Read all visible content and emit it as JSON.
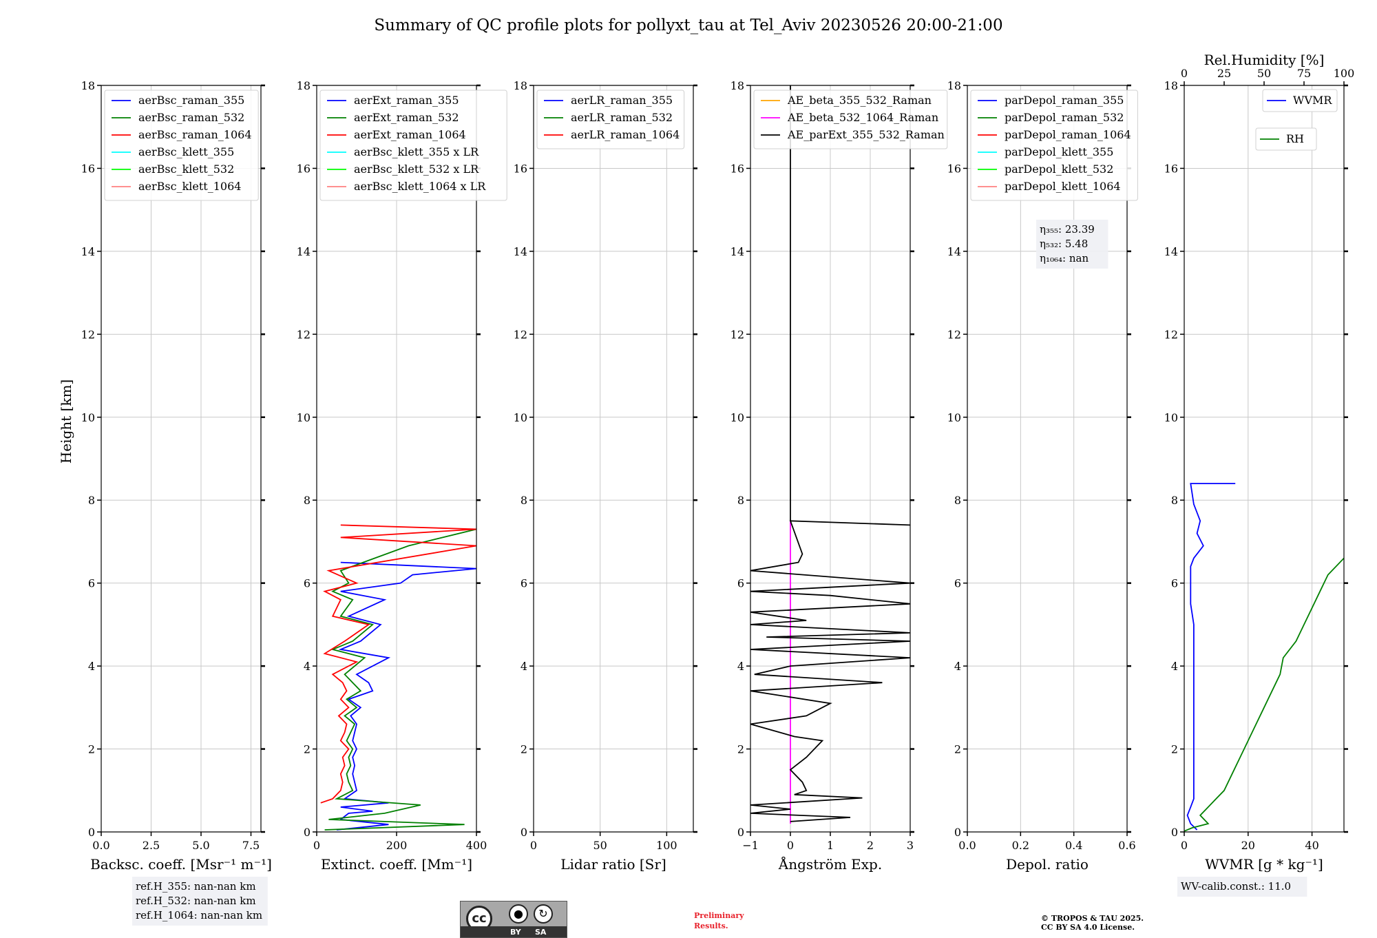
{
  "figure_title": "Summary of QC profile plots for pollyxt_tau at Tel_Aviv 20230526 20:00-21:00",
  "ylabel": "Height [km]",
  "chart_data": [
    {
      "type": "line",
      "xlabel": "Backsc. coeff. [Msr⁻¹ m⁻¹]",
      "xlim": [
        0,
        8
      ],
      "xticks": [
        "0.0",
        "2.5",
        "5.0",
        "7.5"
      ],
      "ylim": [
        0,
        18
      ],
      "grid": true,
      "legend": {
        "placement": "top-left",
        "entries": [
          {
            "name": "aerBsc_raman_355",
            "color": "#0000ff"
          },
          {
            "name": "aerBsc_raman_532",
            "color": "#008000"
          },
          {
            "name": "aerBsc_raman_1064",
            "color": "#ff0000"
          },
          {
            "name": "aerBsc_klett_355",
            "color": "#00ffff"
          },
          {
            "name": "aerBsc_klett_532",
            "color": "#00ff00"
          },
          {
            "name": "aerBsc_klett_1064",
            "color": "#ff8080"
          }
        ]
      },
      "series": [],
      "annotation": [
        "ref.H_355: nan-nan km",
        "ref.H_532: nan-nan km",
        "ref.H_1064: nan-nan km"
      ]
    },
    {
      "type": "line",
      "xlabel": "Extinct. coeff. [Mm⁻¹]",
      "xlim": [
        0,
        400
      ],
      "xticks": [
        "0",
        "200",
        "400"
      ],
      "ylim": [
        0,
        18
      ],
      "grid": true,
      "legend": {
        "placement": "top-left",
        "entries": [
          {
            "name": "aerExt_raman_355",
            "color": "#0000ff"
          },
          {
            "name": "aerExt_raman_532",
            "color": "#008000"
          },
          {
            "name": "aerExt_raman_1064",
            "color": "#ff0000"
          },
          {
            "name": "aerBsc_klett_355 x LR",
            "color": "#00ffff"
          },
          {
            "name": "aerBsc_klett_532 x LR",
            "color": "#00ff00"
          },
          {
            "name": "aerBsc_klett_1064 x LR",
            "color": "#ff8080"
          }
        ]
      },
      "series": [
        {
          "name": "aerExt_raman_355",
          "color": "#0000ff",
          "points": [
            [
              50,
              0.05
            ],
            [
              180,
              0.18
            ],
            [
              60,
              0.3
            ],
            [
              80,
              0.45
            ],
            [
              140,
              0.5
            ],
            [
              60,
              0.6
            ],
            [
              180,
              0.7
            ],
            [
              70,
              0.8
            ],
            [
              100,
              1.0
            ],
            [
              95,
              1.2
            ],
            [
              90,
              1.4
            ],
            [
              95,
              1.6
            ],
            [
              90,
              1.8
            ],
            [
              100,
              2.0
            ],
            [
              90,
              2.2
            ],
            [
              95,
              2.4
            ],
            [
              100,
              2.6
            ],
            [
              85,
              2.8
            ],
            [
              110,
              3.0
            ],
            [
              80,
              3.2
            ],
            [
              140,
              3.4
            ],
            [
              130,
              3.6
            ],
            [
              100,
              3.8
            ],
            [
              180,
              4.2
            ],
            [
              60,
              4.4
            ],
            [
              110,
              4.6
            ],
            [
              160,
              5.0
            ],
            [
              80,
              5.2
            ],
            [
              170,
              5.6
            ],
            [
              60,
              5.8
            ],
            [
              210,
              6.0
            ],
            [
              240,
              6.2
            ],
            [
              400,
              6.35
            ],
            [
              60,
              6.5
            ]
          ]
        },
        {
          "name": "aerExt_raman_532",
          "color": "#008000",
          "points": [
            [
              20,
              0.05
            ],
            [
              370,
              0.18
            ],
            [
              30,
              0.3
            ],
            [
              170,
              0.45
            ],
            [
              260,
              0.65
            ],
            [
              50,
              0.8
            ],
            [
              90,
              1.0
            ],
            [
              80,
              1.2
            ],
            [
              75,
              1.4
            ],
            [
              85,
              1.6
            ],
            [
              80,
              1.8
            ],
            [
              90,
              2.0
            ],
            [
              75,
              2.2
            ],
            [
              85,
              2.4
            ],
            [
              95,
              2.6
            ],
            [
              70,
              2.8
            ],
            [
              100,
              3.0
            ],
            [
              75,
              3.2
            ],
            [
              110,
              3.4
            ],
            [
              90,
              3.6
            ],
            [
              70,
              3.8
            ],
            [
              120,
              4.2
            ],
            [
              40,
              4.4
            ],
            [
              90,
              4.6
            ],
            [
              140,
              5.0
            ],
            [
              60,
              5.2
            ],
            [
              90,
              5.6
            ],
            [
              40,
              5.8
            ],
            [
              80,
              6.0
            ],
            [
              60,
              6.3
            ],
            [
              230,
              6.9
            ],
            [
              400,
              7.3
            ]
          ]
        },
        {
          "name": "aerExt_raman_1064",
          "color": "#ff0000",
          "points": [
            [
              10,
              0.7
            ],
            [
              40,
              0.8
            ],
            [
              60,
              1.0
            ],
            [
              65,
              1.2
            ],
            [
              60,
              1.4
            ],
            [
              70,
              1.6
            ],
            [
              65,
              1.8
            ],
            [
              80,
              2.0
            ],
            [
              60,
              2.2
            ],
            [
              70,
              2.4
            ],
            [
              75,
              2.6
            ],
            [
              55,
              2.8
            ],
            [
              80,
              3.0
            ],
            [
              60,
              3.2
            ],
            [
              75,
              3.4
            ],
            [
              65,
              3.6
            ],
            [
              40,
              3.8
            ],
            [
              100,
              4.1
            ],
            [
              20,
              4.3
            ],
            [
              70,
              4.6
            ],
            [
              130,
              5.0
            ],
            [
              40,
              5.2
            ],
            [
              60,
              5.6
            ],
            [
              20,
              5.8
            ],
            [
              100,
              6.0
            ],
            [
              30,
              6.3
            ],
            [
              400,
              6.9
            ],
            [
              60,
              7.1
            ],
            [
              400,
              7.3
            ],
            [
              60,
              7.4
            ]
          ]
        }
      ]
    },
    {
      "type": "line",
      "xlabel": "Lidar ratio [Sr]",
      "xlim": [
        0,
        120
      ],
      "xticks": [
        "0",
        "50",
        "100"
      ],
      "ylim": [
        0,
        18
      ],
      "grid": true,
      "legend": {
        "placement": "top-left",
        "entries": [
          {
            "name": "aerLR_raman_355",
            "color": "#0000ff"
          },
          {
            "name": "aerLR_raman_532",
            "color": "#008000"
          },
          {
            "name": "aerLR_raman_1064",
            "color": "#ff0000"
          }
        ]
      },
      "series": []
    },
    {
      "type": "line",
      "xlabel": "Ångström Exp.",
      "xlim": [
        -1,
        3
      ],
      "xticks": [
        "−1",
        "0",
        "1",
        "2",
        "3"
      ],
      "ylim": [
        0,
        18
      ],
      "grid": true,
      "legend": {
        "placement": "top-left",
        "entries": [
          {
            "name": "AE_beta_355_532_Raman",
            "color": "#ffa500"
          },
          {
            "name": "AE_beta_532_1064_Raman",
            "color": "#ff00ff"
          },
          {
            "name": "AE_parExt_355_532_Raman",
            "color": "#000000"
          }
        ]
      },
      "series": [
        {
          "name": "AE_beta_532_1064_Raman",
          "color": "#ff00ff",
          "points": [
            [
              0,
              0.2
            ],
            [
              0,
              7.5
            ]
          ]
        },
        {
          "name": "AE_parExt_355_532_Raman",
          "color": "#000000",
          "points": [
            [
              0,
              0.25
            ],
            [
              1.5,
              0.35
            ],
            [
              -1,
              0.45
            ],
            [
              0,
              0.55
            ],
            [
              -1,
              0.65
            ],
            [
              1.8,
              0.82
            ],
            [
              0.1,
              0.9
            ],
            [
              0.4,
              1.0
            ],
            [
              0.3,
              1.2
            ],
            [
              0,
              1.5
            ],
            [
              0.4,
              1.8
            ],
            [
              0.8,
              2.2
            ],
            [
              0.1,
              2.3
            ],
            [
              -1,
              2.6
            ],
            [
              0.4,
              2.8
            ],
            [
              1.0,
              3.1
            ],
            [
              -1,
              3.4
            ],
            [
              2.3,
              3.6
            ],
            [
              -0.9,
              3.8
            ],
            [
              0,
              4.0
            ],
            [
              3,
              4.2
            ],
            [
              -1,
              4.4
            ],
            [
              3,
              4.6
            ],
            [
              -0.6,
              4.7
            ],
            [
              3,
              4.8
            ],
            [
              -1,
              5.0
            ],
            [
              0.4,
              5.1
            ],
            [
              -1,
              5.3
            ],
            [
              3,
              5.5
            ],
            [
              1,
              5.7
            ],
            [
              -1,
              5.8
            ],
            [
              3,
              6.0
            ],
            [
              -1,
              6.3
            ],
            [
              0.2,
              6.5
            ],
            [
              0.3,
              6.7
            ],
            [
              0,
              7.5
            ],
            [
              3,
              7.4
            ]
          ]
        },
        {
          "name": "AE_parExt_355_532_Raman (upper)",
          "color": "#000000",
          "points": [
            [
              0,
              7.5
            ],
            [
              0,
              18
            ]
          ]
        }
      ]
    },
    {
      "type": "line",
      "xlabel": "Depol. ratio",
      "xlim": [
        0,
        0.6
      ],
      "xticks": [
        "0.0",
        "0.2",
        "0.4",
        "0.6"
      ],
      "ylim": [
        0,
        18
      ],
      "grid": true,
      "legend": {
        "placement": "top-left",
        "entries": [
          {
            "name": "parDepol_raman_355",
            "color": "#0000ff"
          },
          {
            "name": "parDepol_raman_532",
            "color": "#008000"
          },
          {
            "name": "parDepol_raman_1064",
            "color": "#ff0000"
          },
          {
            "name": "parDepol_klett_355",
            "color": "#00ffff"
          },
          {
            "name": "parDepol_klett_532",
            "color": "#00ff00"
          },
          {
            "name": "parDepol_klett_1064",
            "color": "#ff8080"
          }
        ]
      },
      "series": [],
      "annotation": [
        "η₃₅₅: 23.39",
        "η₅₃₂: 5.48",
        "η₁₀₆₄: nan"
      ]
    },
    {
      "type": "line",
      "xlabel": "WVMR [g * kg⁻¹]",
      "xlim": [
        0,
        50
      ],
      "xticks": [
        "0",
        "20",
        "40"
      ],
      "x2label": "Rel.Humidity [%]",
      "x2lim": [
        0,
        100
      ],
      "x2ticks": [
        "0",
        "25",
        "50",
        "75",
        "100"
      ],
      "ylim": [
        0,
        18
      ],
      "grid": true,
      "legend": {
        "placement": "top-right",
        "entries": [
          {
            "name": "WVMR",
            "color": "#0000ff"
          },
          {
            "name": "RH",
            "color": "#008000"
          }
        ]
      },
      "series": [
        {
          "name": "WVMR",
          "color": "#0000ff",
          "axis": "bottom",
          "points": [
            [
              4,
              0.05
            ],
            [
              2,
              0.2
            ],
            [
              1,
              0.4
            ],
            [
              2,
              0.6
            ],
            [
              3,
              0.8
            ],
            [
              3,
              1.0
            ],
            [
              3,
              1.5
            ],
            [
              3,
              2.0
            ],
            [
              3,
              2.5
            ],
            [
              3,
              3.0
            ],
            [
              3,
              3.5
            ],
            [
              3,
              4.0
            ],
            [
              3,
              4.5
            ],
            [
              3,
              5.0
            ],
            [
              2,
              5.5
            ],
            [
              2,
              6.0
            ],
            [
              2,
              6.4
            ],
            [
              3,
              6.6
            ],
            [
              6,
              6.9
            ],
            [
              4,
              7.2
            ],
            [
              5,
              7.5
            ],
            [
              3,
              7.9
            ],
            [
              2,
              8.4
            ],
            [
              16,
              8.4
            ]
          ]
        },
        {
          "name": "RH",
          "color": "#008000",
          "axis": "top",
          "points": [
            [
              0,
              0.02
            ],
            [
              5,
              0.1
            ],
            [
              15,
              0.2
            ],
            [
              10,
              0.4
            ],
            [
              15,
              0.6
            ],
            [
              20,
              0.8
            ],
            [
              25,
              1.0
            ],
            [
              30,
              1.4
            ],
            [
              35,
              1.8
            ],
            [
              40,
              2.2
            ],
            [
              45,
              2.6
            ],
            [
              50,
              3.0
            ],
            [
              55,
              3.4
            ],
            [
              60,
              3.8
            ],
            [
              62,
              4.2
            ],
            [
              70,
              4.6
            ],
            [
              75,
              5.0
            ],
            [
              80,
              5.4
            ],
            [
              85,
              5.8
            ],
            [
              90,
              6.2
            ],
            [
              100,
              6.6
            ]
          ]
        }
      ],
      "annotation": [
        "WV-calib.const.: 11.0"
      ]
    }
  ],
  "footer": {
    "preliminary": [
      "Preliminary",
      "Results."
    ],
    "copyright": [
      "© TROPOS & TAU 2025.",
      "CC BY SA 4.0 License."
    ],
    "cc_badge": {
      "main": "cc",
      "by": "BY",
      "sa": "SA"
    }
  }
}
